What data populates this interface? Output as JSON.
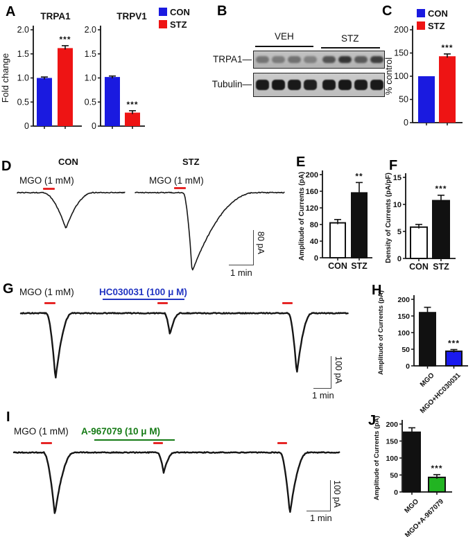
{
  "panel_labels": {
    "A": "A",
    "B": "B",
    "C": "C",
    "D": "D",
    "E": "E",
    "F": "F",
    "G": "G",
    "H": "H",
    "I": "I",
    "J": "J"
  },
  "legend": {
    "con": "CON",
    "stz": "STZ"
  },
  "colors": {
    "con_blue": "#1a1ae0",
    "stz_red": "#ee1414",
    "hc_bar_blue": "#1a1aef",
    "a967079_green": "#22b422",
    "bar_black": "#111111",
    "bar_white": "#ffffff",
    "mgo_app_red": "#e62626",
    "hc_text_blue": "#2235c2",
    "a967079_text_green": "#147a14"
  },
  "western_blot": {
    "veh_label": "VEH",
    "stz_label": "STZ",
    "trpa1_label": "TRPA1—",
    "tubulin_label": "Tubulin—",
    "trpa1_band_intensities": [
      0.42,
      0.38,
      0.44,
      0.34,
      0.62,
      0.8,
      0.58,
      0.74
    ],
    "tubulin_band_intensities": [
      0.95,
      0.97,
      0.96,
      0.93,
      0.96,
      0.97,
      0.95,
      0.96
    ]
  },
  "panelD": {
    "con_title": "CON",
    "stz_title": "STZ",
    "mgo_label": "MGO (1 mM)",
    "scale_vertical": "80 pA",
    "scale_horizontal": "1 min"
  },
  "panelG": {
    "mgo_label": "MGO (1 mM)",
    "drug_label": "HC030031 (100 μ M)",
    "scale_vertical": "100 pA",
    "scale_horizontal": "1 min"
  },
  "panelI": {
    "mgo_label": "MGO (1 mM)",
    "drug_label": "A-967079 (10 μ M)",
    "scale_vertical": "100 pA",
    "scale_horizontal": "1 min"
  },
  "chart_data": [
    {
      "id": "trpa1",
      "panel": "A",
      "type": "bar",
      "title": "TRPA1",
      "ylabel": "Fold change",
      "ylim": [
        0,
        2
      ],
      "ytick_values": [
        0,
        0.5,
        1,
        1.5,
        2
      ],
      "ytick_labels": [
        "0",
        "0.5",
        "1.0",
        "1.5",
        "2.0"
      ],
      "categories": [
        "CON",
        "STZ"
      ],
      "values": [
        1.0,
        1.62
      ],
      "errors": [
        0.02,
        0.05
      ],
      "colors": [
        "#1a1ae0",
        "#ee1414"
      ],
      "sig": [
        "",
        "***"
      ],
      "bar_border": false,
      "show_xlabels": false,
      "rotated_xlabels": false
    },
    {
      "id": "trpv1",
      "panel": "A",
      "type": "bar",
      "title": "TRPV1",
      "ylabel": "",
      "ylim": [
        0,
        2
      ],
      "ytick_values": [
        0,
        0.5,
        1,
        1.5,
        2
      ],
      "ytick_labels": [
        "0",
        "0.5",
        "1.0",
        "1.5",
        "2.0"
      ],
      "categories": [
        "CON",
        "STZ"
      ],
      "values": [
        1.02,
        0.28
      ],
      "errors": [
        0.02,
        0.04
      ],
      "colors": [
        "#1a1ae0",
        "#ee1414"
      ],
      "sig": [
        "",
        "***"
      ],
      "bar_border": false,
      "show_xlabels": false,
      "rotated_xlabels": false
    },
    {
      "id": "pctctl",
      "panel": "C",
      "type": "bar",
      "title": "",
      "ylabel": "% control",
      "ylim": [
        0,
        200
      ],
      "ytick_values": [
        0,
        50,
        100,
        150,
        200
      ],
      "ytick_labels": [
        "0",
        "50",
        "100",
        "150",
        "200"
      ],
      "categories": [
        "CON",
        "STZ"
      ],
      "values": [
        100,
        143
      ],
      "errors": [
        0,
        5
      ],
      "colors": [
        "#1a1ae0",
        "#ee1414"
      ],
      "sig": [
        "",
        "***"
      ],
      "bar_border": false,
      "show_xlabels": false,
      "rotated_xlabels": false
    },
    {
      "id": "ampEF",
      "panel": "E",
      "type": "bar",
      "title": "",
      "ylabel": "Amplitude of Currents (pA)",
      "ylim": [
        0,
        200
      ],
      "ytick_values": [
        0,
        40,
        80,
        120,
        160,
        200
      ],
      "ytick_labels": [
        "0",
        "40",
        "80",
        "120",
        "160",
        "200"
      ],
      "categories": [
        "CON",
        "STZ"
      ],
      "values": [
        84,
        156
      ],
      "errors": [
        8,
        25
      ],
      "colors": [
        "#ffffff",
        "#111111"
      ],
      "sig": [
        "",
        "**"
      ],
      "bar_border": true,
      "show_xlabels": true,
      "rotated_xlabels": false
    },
    {
      "id": "densF",
      "panel": "F",
      "type": "bar",
      "title": "",
      "ylabel": "Density of Currents (pA/pF)",
      "ylim": [
        0,
        15
      ],
      "ytick_values": [
        0,
        5,
        10,
        15
      ],
      "ytick_labels": [
        "0",
        "5",
        "10",
        "15"
      ],
      "categories": [
        "CON",
        "STZ"
      ],
      "values": [
        5.8,
        10.7
      ],
      "errors": [
        0.5,
        1.0
      ],
      "colors": [
        "#ffffff",
        "#111111"
      ],
      "sig": [
        "",
        "***"
      ],
      "bar_border": true,
      "show_xlabels": true,
      "rotated_xlabels": false
    },
    {
      "id": "ampH",
      "panel": "H",
      "type": "bar",
      "title": "",
      "ylabel": "Amplitude of Currents (pA)",
      "ylim": [
        0,
        200
      ],
      "ytick_values": [
        0,
        50,
        100,
        150,
        200
      ],
      "ytick_labels": [
        "0",
        "50",
        "100",
        "150",
        "200"
      ],
      "categories": [
        "MGO",
        "MGO+HC030031"
      ],
      "values": [
        160,
        44
      ],
      "errors": [
        16,
        5
      ],
      "colors": [
        "#111111",
        "#1a1aef"
      ],
      "sig": [
        "",
        "***"
      ],
      "bar_border": true,
      "show_xlabels": true,
      "rotated_xlabels": true
    },
    {
      "id": "ampJ",
      "panel": "J",
      "type": "bar",
      "title": "",
      "ylabel": "Amplitude of Currents (pA)",
      "ylim": [
        0,
        200
      ],
      "ytick_values": [
        0,
        50,
        100,
        150,
        200
      ],
      "ytick_labels": [
        "0",
        "50",
        "100",
        "150",
        "200"
      ],
      "categories": [
        "MGO",
        "MGO+A-967079"
      ],
      "values": [
        176,
        43
      ],
      "errors": [
        13,
        8
      ],
      "colors": [
        "#111111",
        "#22b422"
      ],
      "sig": [
        "",
        "***"
      ],
      "bar_border": true,
      "show_xlabels": true,
      "rotated_xlabels": true
    },
    {
      "id": "trace_d",
      "panel": "D",
      "type": "trace",
      "traces": [
        {
          "label": "CON",
          "stimulus": "MGO (1 mM)",
          "approx_peak_pA": 85
        },
        {
          "label": "STZ",
          "stimulus": "MGO (1 mM)",
          "approx_peak_pA": 185
        }
      ],
      "scale": {
        "vertical": "80 pA",
        "horizontal": "1 min"
      }
    },
    {
      "id": "trace_g",
      "panel": "G",
      "type": "trace",
      "stimulus": "MGO (1 mM)",
      "blocker": "HC030031 (100 μ M)",
      "approx_peaks_pA": [
        210,
        65,
        190
      ],
      "scale": {
        "vertical": "100 pA",
        "horizontal": "1 min"
      }
    },
    {
      "id": "trace_i",
      "panel": "I",
      "type": "trace",
      "stimulus": "MGO (1 mM)",
      "blocker": "A-967079 (10 μ M)",
      "approx_peaks_pA": [
        205,
        66,
        200
      ],
      "scale": {
        "vertical": "100 pA",
        "horizontal": "1 min"
      }
    }
  ]
}
